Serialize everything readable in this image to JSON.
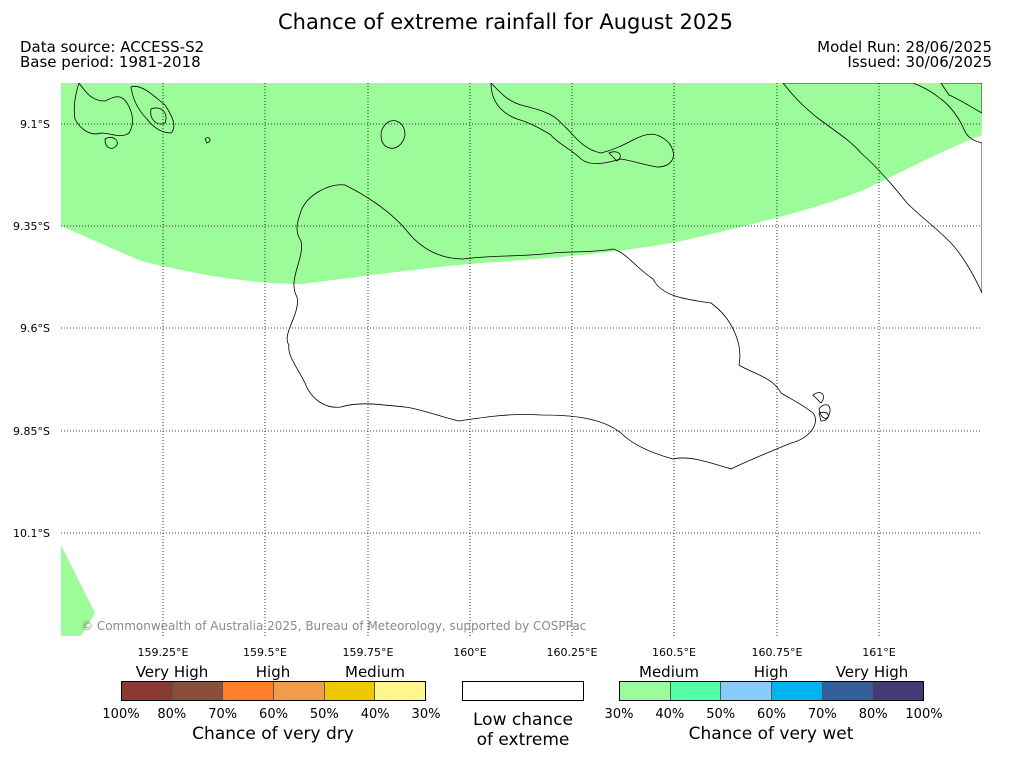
{
  "title": "Chance of extreme rainfall for August 2025",
  "data_source": "Data source: ACCESS-S2",
  "base_period": "Base period: 1981-2018",
  "model_run": "Model Run: 28/06/2025",
  "issued": "Issued: 30/06/2025",
  "credit": "© Commonwealth of Australia 2025, Bureau of Meteorology, supported by COSPPac",
  "map": {
    "lat_labels": [
      "9.1°S",
      "9.35°S",
      "9.6°S",
      "9.85°S",
      "10.1°S"
    ],
    "lon_labels": [
      "159.25°E",
      "159.5°E",
      "159.75°E",
      "160°E",
      "160.25°E",
      "160.5°E",
      "160.75°E",
      "161°E"
    ],
    "shaded_category": "30%-40% chance of very wet",
    "shade_color": "#9cfc9a"
  },
  "legend": {
    "dry": {
      "levels": [
        "Very High",
        "High",
        "Medium"
      ],
      "colors": [
        "#8b3a32",
        "#8b4e3c",
        "#ff7f28",
        "#f09c48",
        "#f0c800",
        "#fff78c"
      ],
      "ticks": [
        "100%",
        "80%",
        "70%",
        "60%",
        "50%",
        "40%",
        "30%"
      ],
      "caption": "Chance of very dry"
    },
    "low": {
      "caption_line1": "Low chance",
      "caption_line2": "of extreme"
    },
    "wet": {
      "levels": [
        "Medium",
        "High",
        "Very High"
      ],
      "colors": [
        "#9cfc9a",
        "#55ffa8",
        "#87cdfa",
        "#00b4f0",
        "#355f9c",
        "#423b78"
      ],
      "ticks": [
        "30%",
        "40%",
        "50%",
        "60%",
        "70%",
        "80%",
        "100%"
      ],
      "caption": "Chance of very wet"
    }
  }
}
